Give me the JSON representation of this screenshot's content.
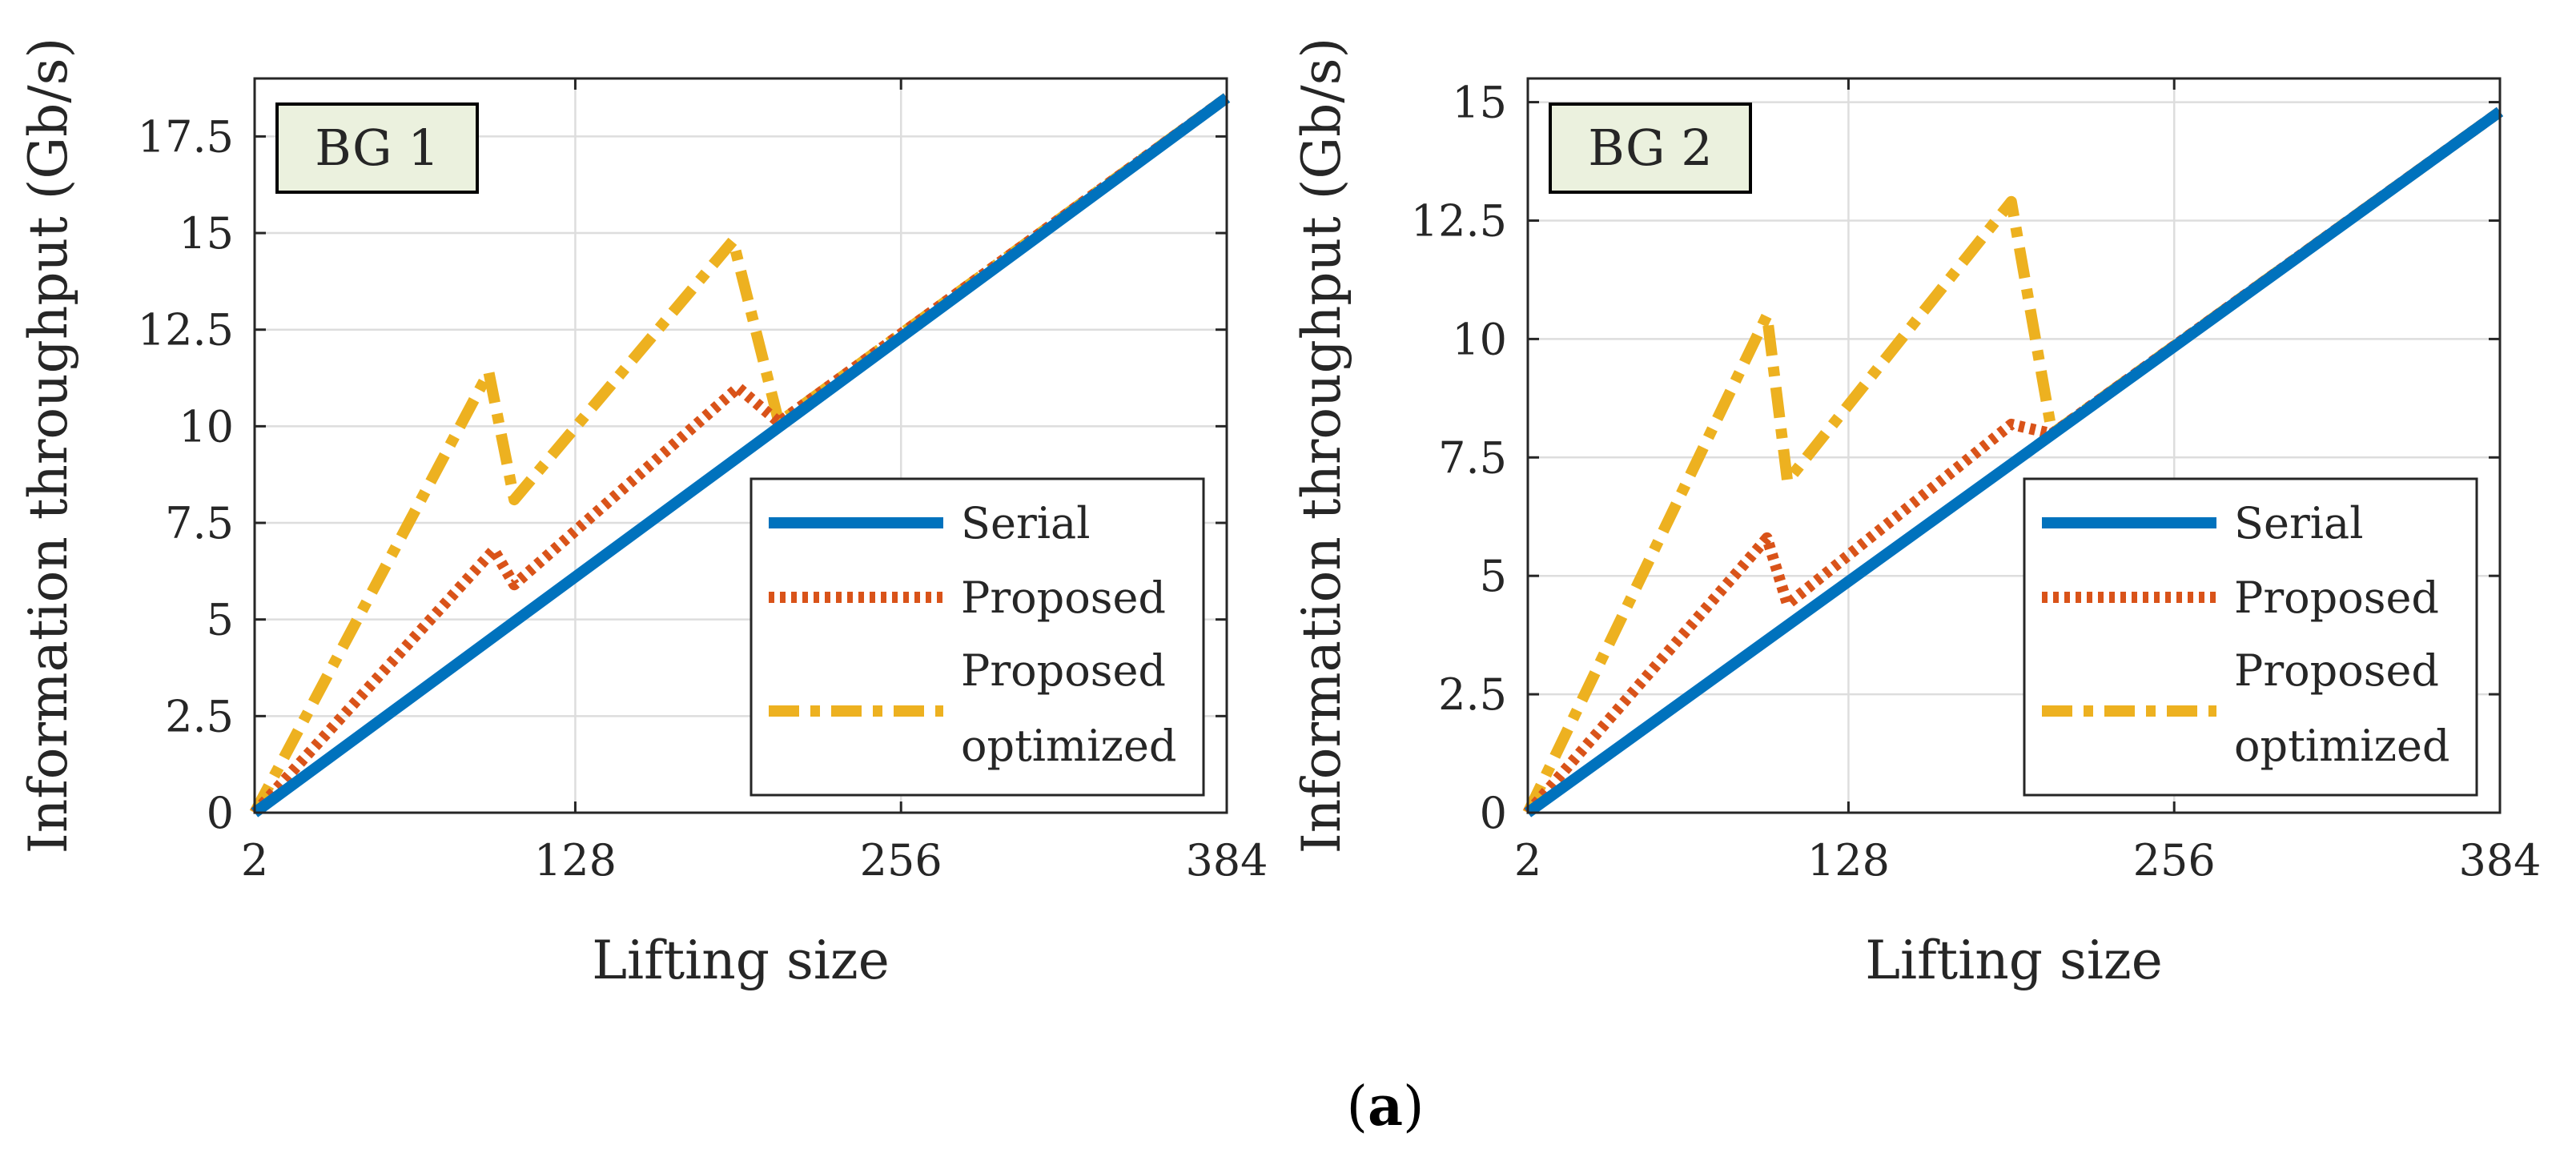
{
  "figure": {
    "caption_open": "(",
    "caption_letter": "a",
    "caption_close": ")"
  },
  "colors": {
    "serial": "#0072BD",
    "proposed": "#D95319",
    "proposed_optimized": "#EDB120",
    "tag_fill": "#EBF1DE",
    "grid": "#dddddd",
    "axis": "#262626"
  },
  "chart_data": [
    {
      "type": "line",
      "tag": "BG 1",
      "xlabel": "Lifting size",
      "ylabel": "Information throughput (Gb/s)",
      "xlim": [
        2,
        384
      ],
      "ylim": [
        0,
        19
      ],
      "xticks": [
        2,
        128,
        256,
        384
      ],
      "xtick_labels": [
        "2",
        "128",
        "256",
        "384"
      ],
      "yticks": [
        0,
        2.5,
        5,
        7.5,
        10,
        12.5,
        15,
        17.5
      ],
      "ytick_labels": [
        "0",
        "2.5",
        "5",
        "7.5",
        "10",
        "12.5",
        "15",
        "17.5"
      ],
      "grid": true,
      "legend_position": "bottom-right",
      "legend": [
        "Serial",
        "Proposed",
        [
          "Proposed",
          "optimized"
        ]
      ],
      "series": [
        {
          "name": "Serial",
          "style": "solid",
          "x": [
            2,
            384
          ],
          "y": [
            0,
            18.5
          ]
        },
        {
          "name": "Proposed",
          "style": "dotted",
          "x": [
            2,
            96,
            104,
            192,
            208,
            384
          ],
          "y": [
            0,
            6.8,
            5.9,
            11.0,
            10.1,
            18.5
          ]
        },
        {
          "name": "Proposed optimized",
          "style": "dashdot",
          "x": [
            2,
            94,
            104,
            190,
            208,
            384
          ],
          "y": [
            0,
            11.4,
            8.1,
            14.8,
            10.1,
            18.5
          ]
        }
      ]
    },
    {
      "type": "line",
      "tag": "BG 2",
      "xlabel": "Lifting size",
      "ylabel": "Information throughput (Gb/s)",
      "xlim": [
        2,
        384
      ],
      "ylim": [
        0,
        15.5
      ],
      "xticks": [
        2,
        128,
        256,
        384
      ],
      "xtick_labels": [
        "2",
        "128",
        "256",
        "384"
      ],
      "yticks": [
        0,
        2.5,
        5,
        7.5,
        10,
        12.5,
        15
      ],
      "ytick_labels": [
        "0",
        "2.5",
        "5",
        "7.5",
        "10",
        "12.5",
        "15"
      ],
      "grid": true,
      "legend_position": "bottom-right",
      "legend": [
        "Serial",
        "Proposed",
        [
          "Proposed",
          "optimized"
        ]
      ],
      "series": [
        {
          "name": "Serial",
          "style": "solid",
          "x": [
            2,
            384
          ],
          "y": [
            0,
            14.8
          ]
        },
        {
          "name": "Proposed",
          "style": "dotted",
          "x": [
            2,
            96,
            104,
            192,
            208,
            384
          ],
          "y": [
            0,
            5.8,
            4.4,
            8.2,
            8.0,
            14.8
          ]
        },
        {
          "name": "Proposed optimized",
          "style": "dashdot",
          "x": [
            2,
            96,
            104,
            192,
            208,
            384
          ],
          "y": [
            0,
            10.5,
            7.0,
            12.9,
            8.0,
            14.8
          ]
        }
      ]
    }
  ]
}
